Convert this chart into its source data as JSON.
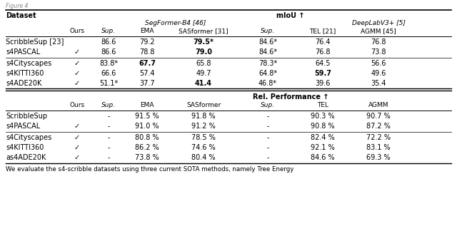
{
  "fig_width": 6.4,
  "fig_height": 3.31,
  "dpi": 100,
  "caption": "We evaluate the s4-scribble datasets using three current SOTA methods, namely Tree Energy",
  "top_table": {
    "groups": [
      {
        "rows": [
          {
            "dataset": "ScribbleSup [23]",
            "ours": "",
            "sup": "86.6",
            "ema": "79.2",
            "sasformer": "79.5*",
            "sasformer_bold": true,
            "sup2": "84.6*",
            "tel": "76.4",
            "agmm": "76.8"
          },
          {
            "dataset": "s4PASCAL",
            "ours": "✓",
            "sup": "86.6",
            "ema": "78.8",
            "sasformer": "79.0",
            "sasformer_bold": true,
            "sup2": "84.6*",
            "tel": "76.8",
            "agmm": "73.8"
          }
        ]
      },
      {
        "rows": [
          {
            "dataset": "s4Cityscapes",
            "ours": "✓",
            "sup": "83.8*",
            "ema": "67.7",
            "ema_bold": true,
            "sasformer": "65.8",
            "sup2": "78.3*",
            "tel": "64.5",
            "agmm": "56.6"
          },
          {
            "dataset": "s4KITTI360",
            "ours": "✓",
            "sup": "66.6",
            "ema": "57.4",
            "sasformer": "49.7",
            "sup2": "64.8*",
            "tel": "59.7",
            "tel_bold": true,
            "agmm": "49.6"
          },
          {
            "dataset": "s4ADE20K",
            "ours": "✓",
            "sup": "51.1*",
            "ema": "37.7",
            "sasformer": "41.4",
            "sasformer_bold": true,
            "sup2": "46.8*",
            "tel": "39.6",
            "agmm": "35.4"
          }
        ]
      }
    ]
  },
  "bottom_table": {
    "groups": [
      {
        "rows": [
          {
            "dataset": "ScribbleSup",
            "ours": "",
            "sup": "-",
            "ema": "91.5 %",
            "sasformer": "91.8 %",
            "sup2": "-",
            "tel": "90.3 %",
            "agmm": "90.7 %"
          },
          {
            "dataset": "s4PASCAL",
            "ours": "✓",
            "sup": "-",
            "ema": "91.0 %",
            "sasformer": "91.2 %",
            "sup2": "-",
            "tel": "90.8 %",
            "agmm": "87.2 %"
          }
        ]
      },
      {
        "rows": [
          {
            "dataset": "s4Cityscapes",
            "ours": "✓",
            "sup": "-",
            "ema": "80.8 %",
            "sasformer": "78.5 %",
            "sup2": "-",
            "tel": "82.4 %",
            "agmm": "72.2 %"
          },
          {
            "dataset": "s4KITTI360",
            "ours": "✓",
            "sup": "-",
            "ema": "86.2 %",
            "sasformer": "74.6 %",
            "sup2": "-",
            "tel": "92.1 %",
            "agmm": "83.1 %"
          },
          {
            "dataset": "as4ADE20K",
            "ours": "✓",
            "sup": "-",
            "ema": "73.8 %",
            "sasformer": "80.4 %",
            "sup2": "-",
            "tel": "84.6 %",
            "agmm": "69.3 %"
          }
        ]
      }
    ]
  }
}
